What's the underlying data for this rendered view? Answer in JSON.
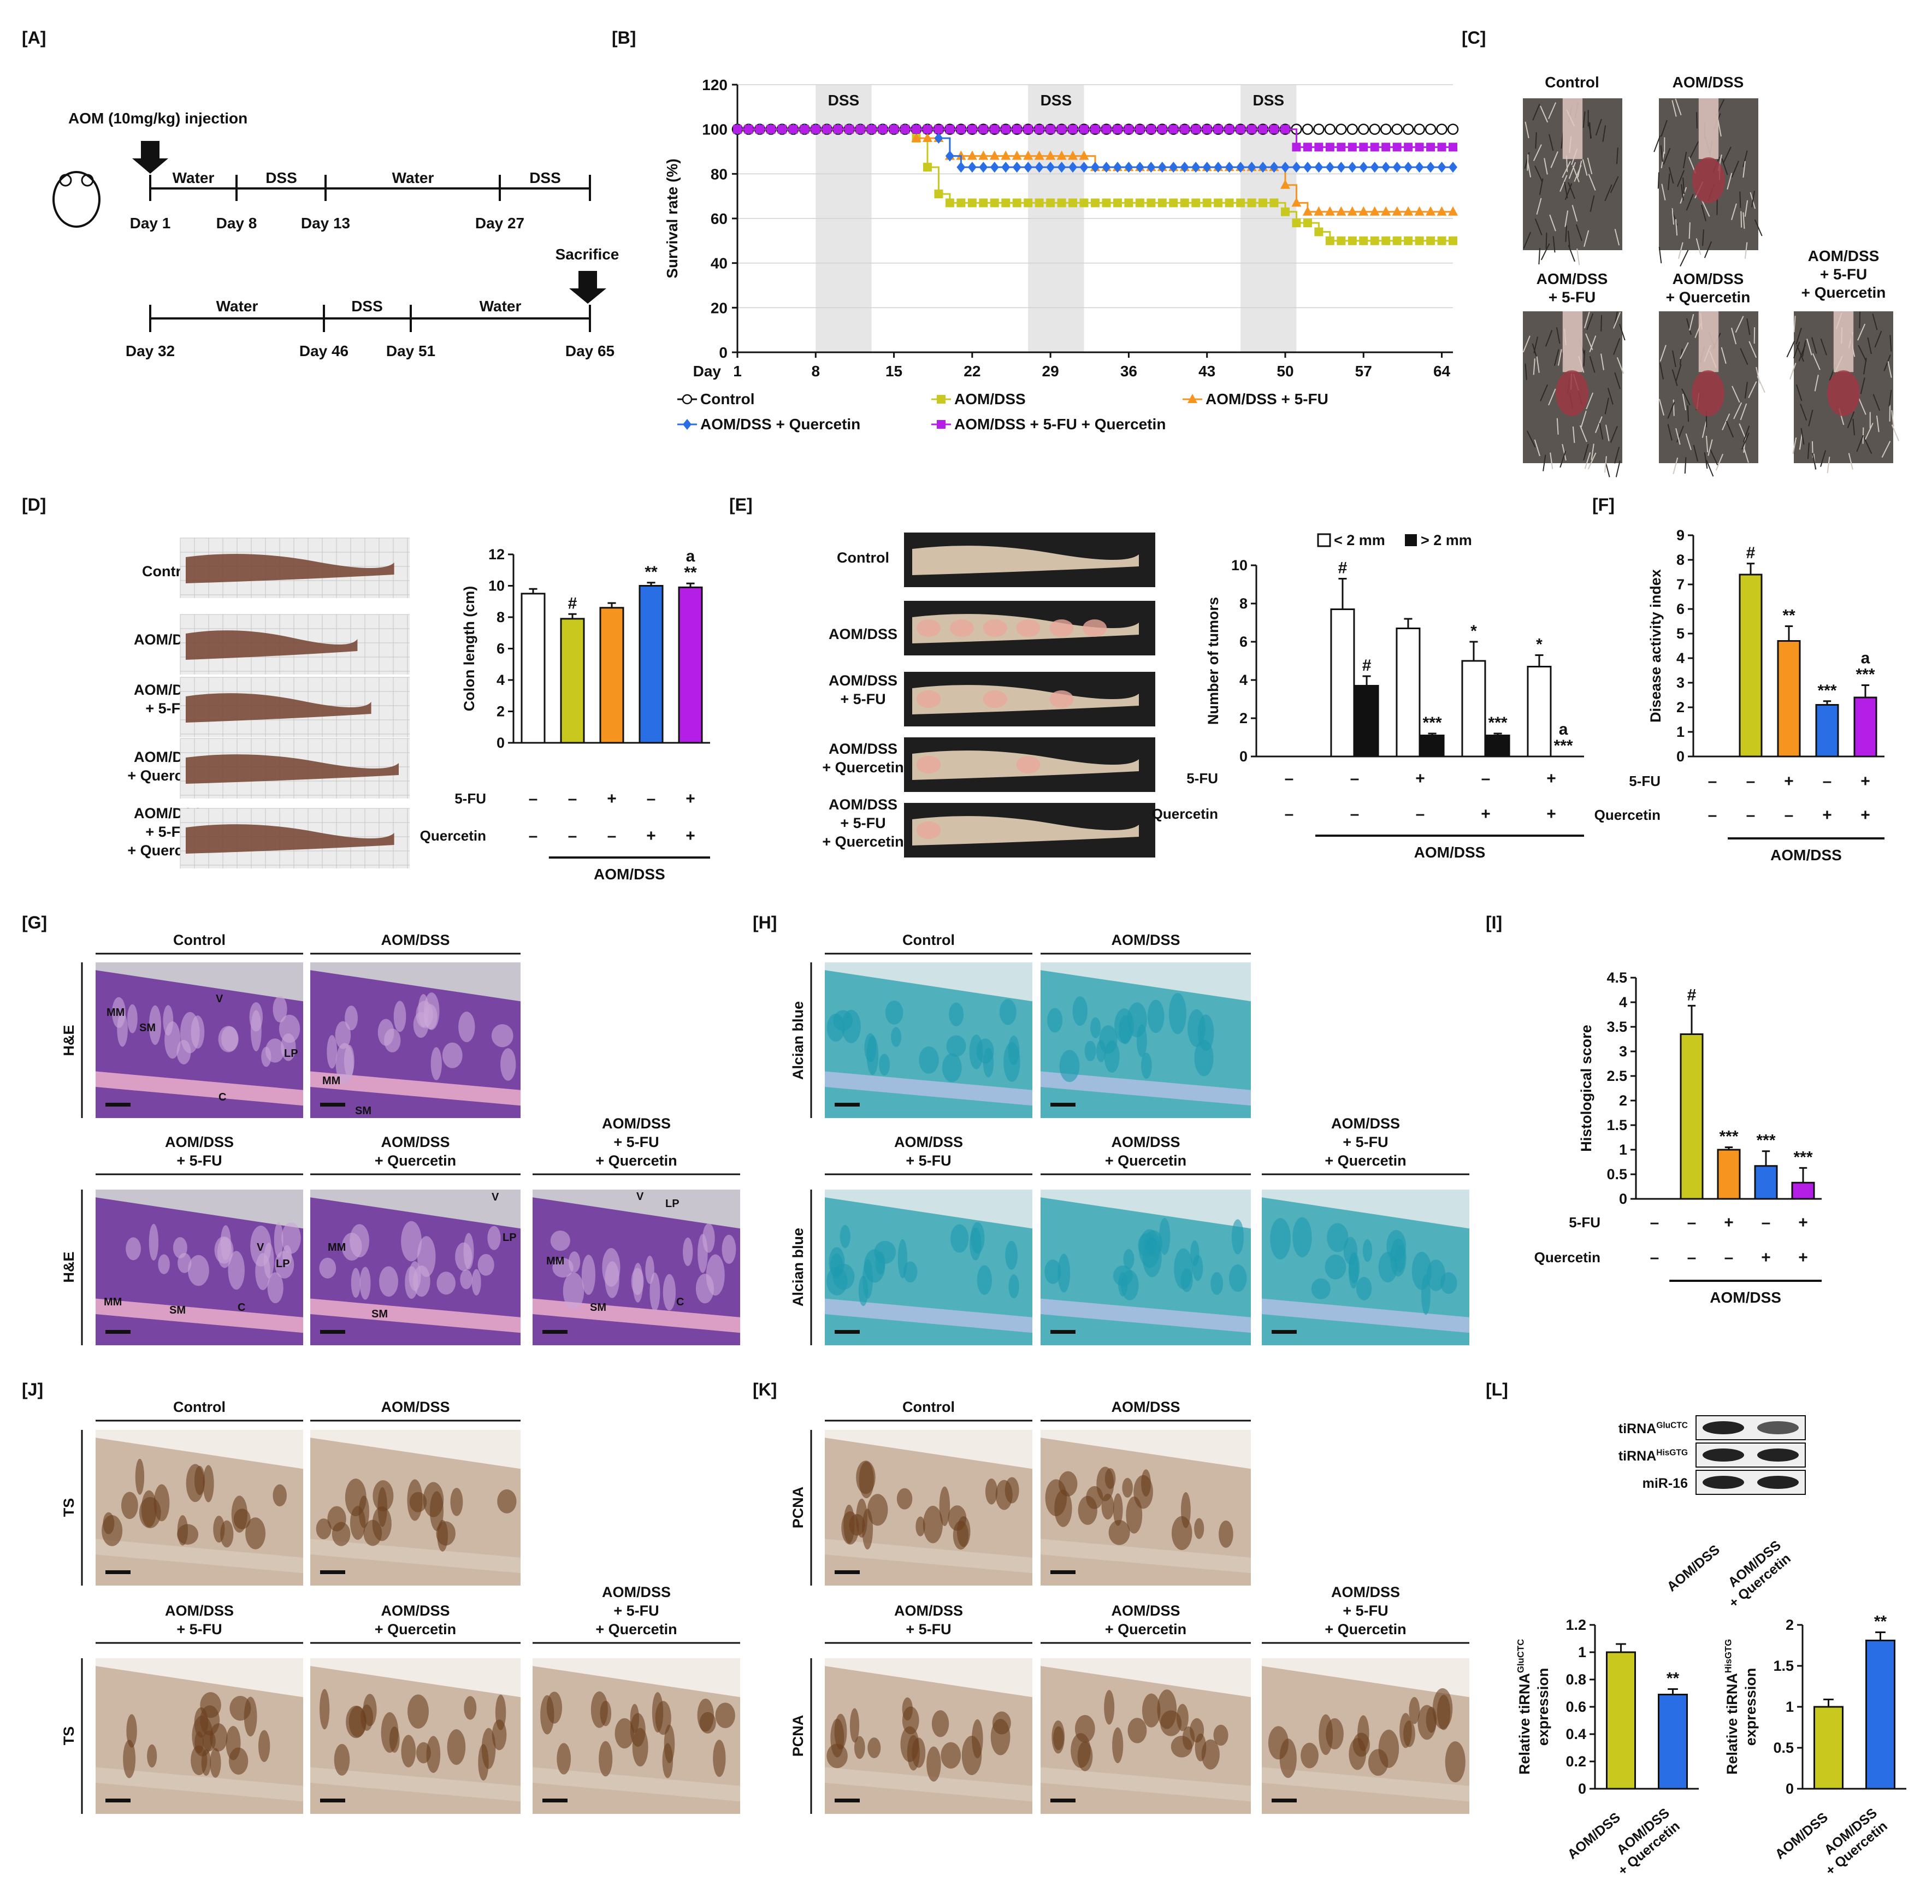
{
  "panels": {
    "A": "[A]",
    "B": "[B]",
    "C": "[C]",
    "D": "[D]",
    "E": "[E]",
    "F": "[F]",
    "G": "[G]",
    "H": "[H]",
    "I": "[I]",
    "J": "[J]",
    "K": "[K]",
    "L": "[L]"
  },
  "colors": {
    "control": "#ffffff",
    "aom": "#c8c81e",
    "fu": "#f5941e",
    "quercetin": "#2a6ee6",
    "combo": "#b41ee6",
    "he": "#7a3fa8",
    "alcian": "#4fb0b6",
    "ihc": "#8a5a2e"
  },
  "groups": {
    "control": "Control",
    "aom": "AOM/DSS",
    "fu_l1": "AOM/DSS",
    "fu_l2": "+ 5-FU",
    "q_l1": "AOM/DSS",
    "q_l2": "+ Quercetin",
    "c_l1": "AOM/DSS",
    "c_l2": "+ 5-FU",
    "c_l3": "+ Quercetin"
  },
  "factors": {
    "fu": "5-FU",
    "quercetin": "Quercetin",
    "aomdss": "AOM/DSS",
    "plus": "+",
    "minus": "–",
    "fu_pattern": [
      "–",
      "–",
      "+",
      "–",
      "+"
    ],
    "q_pattern": [
      "–",
      "–",
      "–",
      "+",
      "+"
    ]
  },
  "timeline": {
    "injection": "AOM (10mg/kg) injection",
    "sacrifice": "Sacrifice",
    "row1_segments": [
      "Water",
      "DSS",
      "Water",
      "DSS"
    ],
    "row1_days": [
      "Day 1",
      "Day 8",
      "Day 13",
      "Day 27"
    ],
    "row2_segments": [
      "Water",
      "DSS",
      "Water"
    ],
    "row2_days": [
      "Day 32",
      "Day 46",
      "Day 51",
      "Day 65"
    ]
  },
  "tissue": {
    "he": "H&E",
    "alcian": "Alcian blue",
    "ts": "TS",
    "pcna": "PCNA",
    "he_labels": [
      "MM",
      "SM",
      "V",
      "LP",
      "C"
    ]
  },
  "blot": {
    "rows": [
      {
        "label": "tiRNA",
        "sup": "GluCTC"
      },
      {
        "label": "tiRNA",
        "sup": "HisGTG"
      },
      {
        "label": "miR-16",
        "sup": ""
      }
    ],
    "lanes": [
      "AOM/DSS",
      "AOM/DSS",
      "+ Quercetin"
    ]
  },
  "chart_data": [
    {
      "panel": "B",
      "type": "line",
      "xlabel": "Day",
      "ylabel": "Survival rate (%)",
      "xticks": [
        1,
        8,
        15,
        22,
        29,
        36,
        43,
        50,
        57,
        64
      ],
      "yticks": [
        0,
        20,
        40,
        60,
        80,
        100,
        120
      ],
      "xlim": [
        1,
        65
      ],
      "ylim": [
        0,
        120
      ],
      "shaded": [
        {
          "label": "DSS",
          "from": 8,
          "to": 13
        },
        {
          "label": "DSS",
          "from": 27,
          "to": 32
        },
        {
          "label": "DSS",
          "from": 46,
          "to": 51
        }
      ],
      "series": [
        {
          "name": "Control",
          "color_key": "control",
          "marker": "circle",
          "steps": [
            [
              1,
              100
            ],
            [
              65,
              100
            ]
          ]
        },
        {
          "name": "AOM/DSS",
          "color_key": "aom",
          "marker": "square",
          "steps": [
            [
              1,
              100
            ],
            [
              17,
              96
            ],
            [
              18,
              83
            ],
            [
              19,
              71
            ],
            [
              20,
              67
            ],
            [
              49,
              67
            ],
            [
              50,
              63
            ],
            [
              51,
              58
            ],
            [
              53,
              54
            ],
            [
              54,
              50
            ],
            [
              65,
              50
            ]
          ]
        },
        {
          "name": "AOM/DSS + 5-FU",
          "color_key": "fu",
          "marker": "triangle",
          "steps": [
            [
              1,
              100
            ],
            [
              17,
              96
            ],
            [
              20,
              88
            ],
            [
              32,
              88
            ],
            [
              33,
              83
            ],
            [
              49,
              83
            ],
            [
              50,
              75
            ],
            [
              51,
              67
            ],
            [
              52,
              63
            ],
            [
              65,
              63
            ]
          ]
        },
        {
          "name": "AOM/DSS + Quercetin",
          "color_key": "quercetin",
          "marker": "diamond",
          "steps": [
            [
              1,
              100
            ],
            [
              19,
              96
            ],
            [
              20,
              88
            ],
            [
              21,
              83
            ],
            [
              65,
              83
            ]
          ]
        },
        {
          "name": "AOM/DSS + 5-FU + Quercetin",
          "color_key": "combo",
          "marker": "square",
          "steps": [
            [
              1,
              100
            ],
            [
              50,
              100
            ],
            [
              51,
              92
            ],
            [
              65,
              92
            ]
          ]
        }
      ]
    },
    {
      "panel": "D",
      "type": "bar",
      "ylabel": "Colon length (cm)",
      "yticks": [
        0,
        2,
        4,
        6,
        8,
        10,
        12
      ],
      "ylim": [
        0,
        12
      ],
      "values": [
        9.5,
        7.9,
        8.6,
        10.0,
        9.9
      ],
      "errors": [
        0.3,
        0.3,
        0.3,
        0.2,
        0.25
      ],
      "annotations": [
        "",
        "#",
        "",
        "**",
        "**"
      ],
      "extra": [
        "",
        "",
        "",
        "",
        "a"
      ]
    },
    {
      "panel": "E",
      "type": "bar",
      "ylabel": "Number of tumors",
      "legend": [
        "< 2 mm",
        "> 2 mm"
      ],
      "yticks": [
        0,
        2,
        4,
        6,
        8,
        10
      ],
      "ylim": [
        0,
        10
      ],
      "series": [
        {
          "name": "< 2 mm",
          "values": [
            0,
            7.7,
            6.7,
            5.0,
            4.7
          ],
          "errors": [
            0,
            1.6,
            0.5,
            1.0,
            0.6
          ],
          "annotations": [
            "",
            "#",
            "",
            "*",
            "*"
          ]
        },
        {
          "name": "> 2 mm",
          "values": [
            0,
            3.7,
            1.1,
            1.1,
            0
          ],
          "errors": [
            0,
            0.5,
            0.1,
            0.1,
            0
          ],
          "annotations": [
            "",
            "#",
            "***",
            "***",
            "***"
          ],
          "extra": [
            "",
            "",
            "",
            "",
            "a"
          ]
        }
      ]
    },
    {
      "panel": "F",
      "type": "bar",
      "ylabel": "Disease activity index",
      "yticks": [
        0,
        1,
        2,
        3,
        4,
        5,
        6,
        7,
        8,
        9
      ],
      "ylim": [
        0,
        9
      ],
      "values": [
        0,
        7.4,
        4.7,
        2.1,
        2.4
      ],
      "errors": [
        0,
        0.45,
        0.6,
        0.15,
        0.5
      ],
      "annotations": [
        "",
        "#",
        "**",
        "***",
        "***"
      ],
      "extra": [
        "",
        "",
        "",
        "",
        "a"
      ]
    },
    {
      "panel": "I",
      "type": "bar",
      "ylabel": "Histological score",
      "yticks": [
        0,
        0.5,
        1,
        1.5,
        2,
        2.5,
        3,
        3.5,
        4,
        4.5
      ],
      "ylim": [
        0,
        4.5
      ],
      "ytick_labels": [
        "0",
        "0.5",
        "1",
        "1.5",
        "2",
        "2.5",
        "3",
        "3.5",
        "4",
        "4.5"
      ],
      "values": [
        0,
        3.35,
        1.0,
        0.67,
        0.33
      ],
      "errors": [
        0,
        0.58,
        0.05,
        0.3,
        0.3
      ],
      "annotations": [
        "",
        "#",
        "***",
        "***",
        "***"
      ]
    },
    {
      "panel": "L1",
      "type": "bar",
      "ylabel": "Relative tiRNA",
      "ylabel_sup": "GluCTC",
      "ylabel2": "expression",
      "yticks": [
        0,
        0.2,
        0.4,
        0.6,
        0.8,
        1,
        1.2
      ],
      "ylim": [
        0,
        1.2
      ],
      "ytick_labels": [
        "0",
        "0.2",
        "0.4",
        "0.6",
        "0.8",
        "1",
        "1.2"
      ],
      "values": [
        1.0,
        0.69
      ],
      "errors": [
        0.06,
        0.04
      ],
      "annotations": [
        "",
        "**"
      ]
    },
    {
      "panel": "L2",
      "type": "bar",
      "ylabel": "Relative tiRNA",
      "ylabel_sup": "HisGTG",
      "ylabel2": "expression",
      "yticks": [
        0,
        0.5,
        1,
        1.5,
        2
      ],
      "ylim": [
        0,
        2
      ],
      "ytick_labels": [
        "0",
        "0.5",
        "1",
        "1.5",
        "2"
      ],
      "values": [
        1.0,
        1.81
      ],
      "errors": [
        0.09,
        0.1
      ],
      "annotations": [
        "",
        "**"
      ]
    }
  ]
}
